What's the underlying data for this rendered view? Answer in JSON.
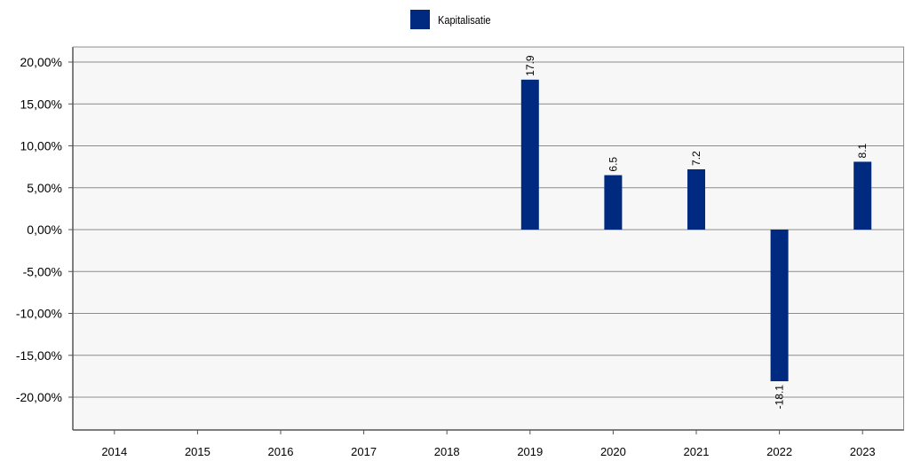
{
  "legend": {
    "label": "Kapitalisatie",
    "color": "#002a7f"
  },
  "chart_data": {
    "type": "bar",
    "categories": [
      "2014",
      "2015",
      "2016",
      "2017",
      "2018",
      "2019",
      "2020",
      "2021",
      "2022",
      "2023"
    ],
    "series": [
      {
        "name": "Kapitalisatie",
        "values": [
          null,
          null,
          null,
          null,
          null,
          17.9,
          6.5,
          7.2,
          -18.1,
          8.1
        ]
      }
    ],
    "data_labels": [
      "",
      "",
      "",
      "",
      "",
      "17.9",
      "6.5",
      "7.2",
      "-18.1",
      "8.1"
    ],
    "y_ticks": [
      20,
      15,
      10,
      5,
      0,
      -5,
      -10,
      -15,
      -20
    ],
    "y_tick_labels": [
      "20,00%",
      "15,00%",
      "10,00%",
      "5,00%",
      "0,00%",
      "-5,00%",
      "-10,00%",
      "-15,00%",
      "-20,00%"
    ],
    "ylim": [
      -24,
      22
    ],
    "grid": "horizontal",
    "legend_position": "top-center",
    "bar_color": "#002a7f",
    "plot_background": "#f7f7f7"
  }
}
